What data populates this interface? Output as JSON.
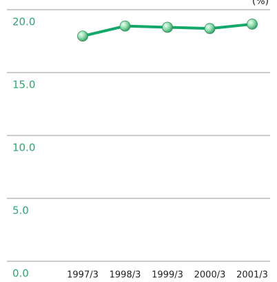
{
  "chart_data": {
    "type": "line",
    "unit": "(%)",
    "categories": [
      "1997/3",
      "1998/3",
      "1999/3",
      "2000/3",
      "2001/3"
    ],
    "series": [
      {
        "color": "#13a86a",
        "values": [
          17.9,
          18.7,
          18.6,
          18.5,
          18.85
        ]
      }
    ],
    "ylim": [
      0,
      20
    ],
    "yticks": [
      {
        "value": 0,
        "label": "0.0"
      },
      {
        "value": 5,
        "label": "5.0"
      },
      {
        "value": 10,
        "label": "10.0"
      },
      {
        "value": 15,
        "label": "15.0"
      },
      {
        "value": 20,
        "label": "20.0"
      }
    ],
    "grid": true
  }
}
